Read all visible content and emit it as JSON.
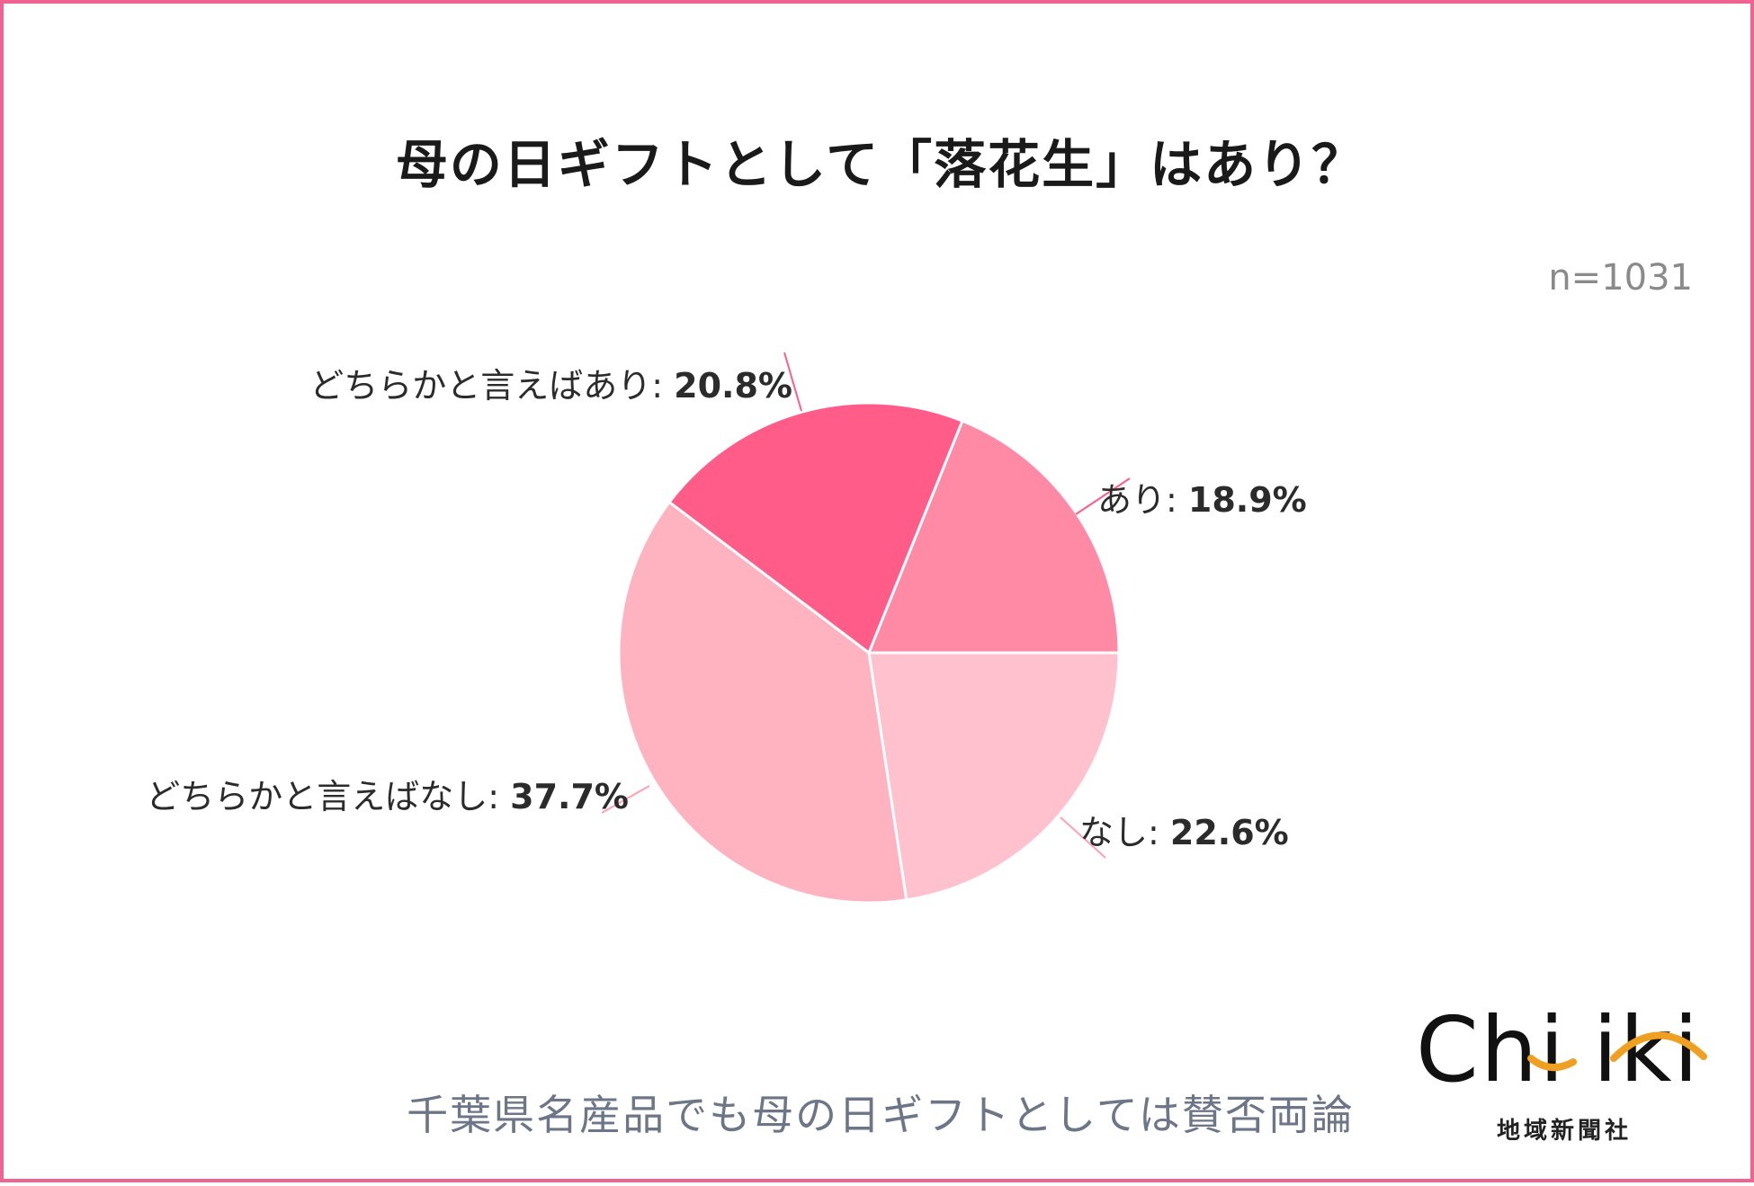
{
  "title": "母の日ギフトとして「落花生」はあり？",
  "n_label": "n=1031",
  "subtitle": "千葉県名産品でも母の日ギフトとしては賛否両論",
  "logo": {
    "wordmark": "Chiiki",
    "sub": "地域新聞社"
  },
  "chart_data": {
    "type": "pie",
    "title": "母の日ギフトとして「落花生」はあり？",
    "slices": [
      {
        "label": "あり",
        "value": 18.9,
        "display": "18.9%",
        "color": "#ff8aa5"
      },
      {
        "label": "なし",
        "value": 22.6,
        "display": "22.6%",
        "color": "#ffc1cd"
      },
      {
        "label": "どちらかと言えばなし",
        "value": 37.7,
        "display": "37.7%",
        "color": "#ffb3c0"
      },
      {
        "label": "どちらかと言えばあり",
        "value": 20.8,
        "display": "20.8%",
        "color": "#ff5c89"
      }
    ],
    "start": "3 o'clock, counter-clockwise"
  }
}
